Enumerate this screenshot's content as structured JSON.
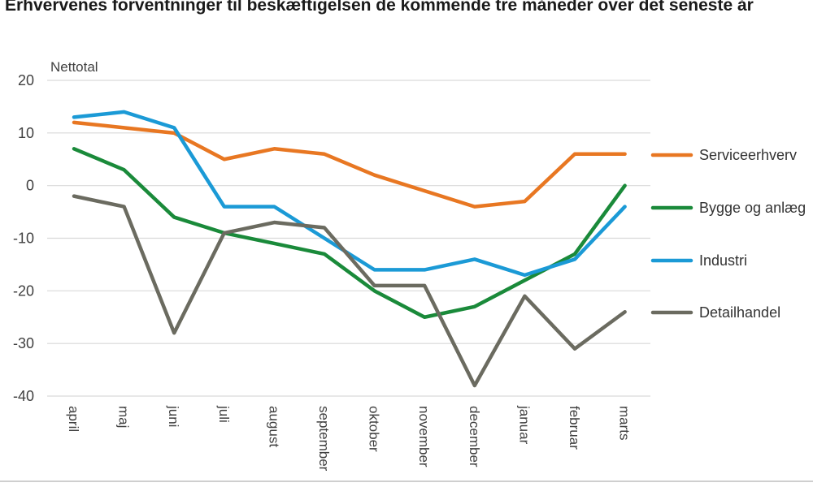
{
  "chart_data": {
    "type": "line",
    "title": "Erhvervenes forventninger til beskæftigelsen de kommende tre måneder over det seneste år",
    "ylabel": "Nettotal",
    "xlabel": "",
    "ylim": [
      -40,
      20
    ],
    "yticks": [
      20,
      10,
      0,
      -10,
      -20,
      -30,
      -40
    ],
    "grid": "horizontal",
    "legend": "right",
    "categories": [
      "april",
      "maj",
      "juni",
      "juli",
      "august",
      "september",
      "oktober",
      "november",
      "december",
      "januar",
      "februar",
      "marts"
    ],
    "series": [
      {
        "name": "Serviceerhverv",
        "color": "#e87722",
        "values": [
          12,
          11,
          10,
          5,
          7,
          6,
          2,
          -1,
          -4,
          -3,
          6,
          6
        ]
      },
      {
        "name": "Bygge og anlæg",
        "color": "#1a8a3a",
        "values": [
          7,
          3,
          -6,
          -9,
          -11,
          -13,
          -20,
          -25,
          -23,
          -18,
          -13,
          0
        ]
      },
      {
        "name": "Industri",
        "color": "#1b9ad6",
        "values": [
          13,
          14,
          11,
          -4,
          -4,
          -10,
          -16,
          -16,
          -14,
          -17,
          -14,
          -4
        ]
      },
      {
        "name": "Detailhandel",
        "color": "#6b6b60",
        "values": [
          -2,
          -4,
          -28,
          -9,
          -7,
          -8,
          -19,
          -19,
          -38,
          -21,
          -31,
          -24
        ]
      }
    ]
  }
}
